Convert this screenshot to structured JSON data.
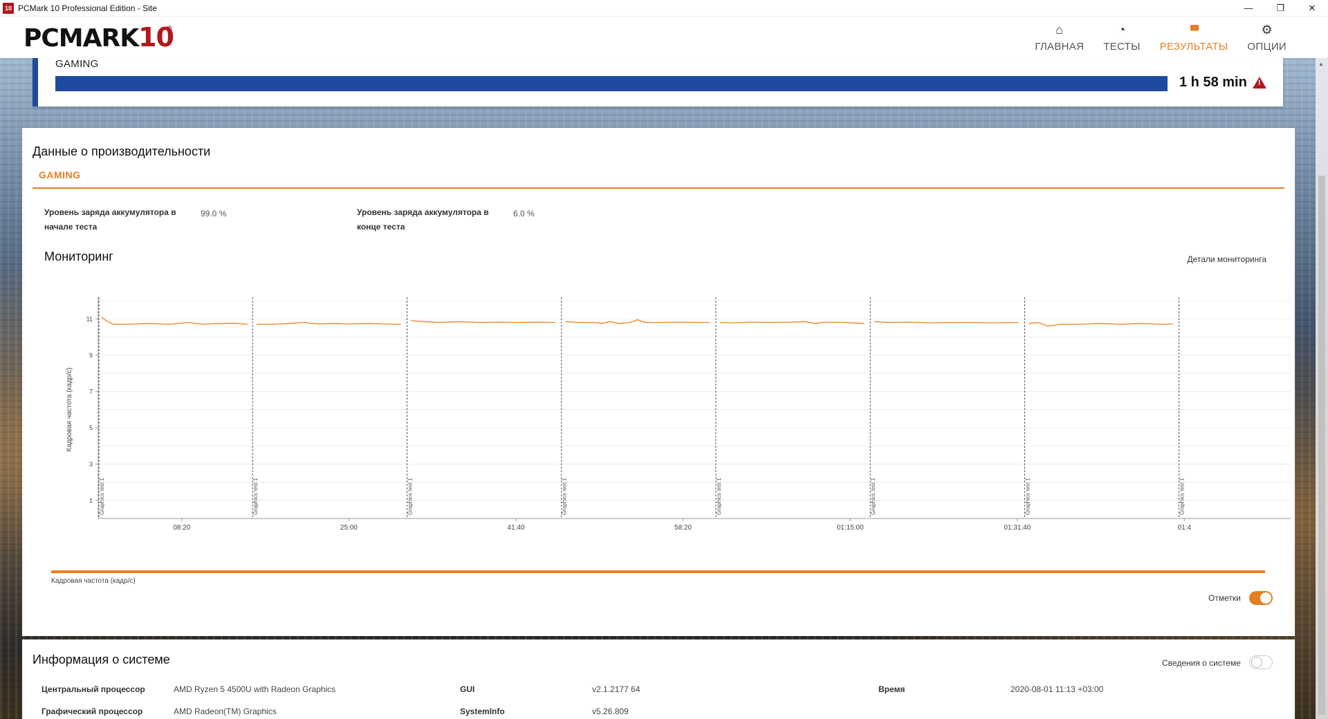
{
  "window": {
    "title": "PCMark 10 Professional Edition - Site",
    "app_icon_text": "10",
    "controls": [
      "—",
      "❐",
      "✕"
    ]
  },
  "header": {
    "logo_main": "PCMARK",
    "logo_num": "10",
    "logo_reg": "®",
    "nav": [
      {
        "label": "ГЛАВНАЯ",
        "icon": "home-icon",
        "glyph": "⌂",
        "active": false
      },
      {
        "label": "ТЕСТЫ",
        "icon": "gauge-icon",
        "glyph": "◔",
        "active": false
      },
      {
        "label": "РЕЗУЛЬТАТЫ",
        "icon": "bar-chart-icon",
        "glyph": "▮▮▮",
        "active": true
      },
      {
        "label": "ОПЦИИ",
        "icon": "gear-icon",
        "glyph": "⚙",
        "active": false
      }
    ]
  },
  "gaming_card": {
    "label": "GAMING",
    "score": "1 h 58 min"
  },
  "performance": {
    "title": "Данные о производительности",
    "tab": "GAMING",
    "battery_start_label": "Уровень заряда аккумулятора в начале теста",
    "battery_start_value": "99.0 %",
    "battery_end_label": "Уровень заряда аккумулятора в конце теста",
    "battery_end_value": "6.0 %",
    "monitoring_title": "Мониторинг",
    "monitoring_link": "Детали мониторинга",
    "legend_label": "Кадровая частота (кадр/с)",
    "marks_label": "Отметки",
    "marks_on": true
  },
  "chart_data": {
    "type": "line",
    "ylabel": "Кадровая частота (кадр/с)",
    "ylim": [
      0,
      12
    ],
    "yticks": [
      1,
      3,
      5,
      7,
      9,
      11
    ],
    "x_tick_labels": [
      "08:20",
      "25:00",
      "41:40",
      "58:20",
      "01:15:00",
      "01:31:40",
      "01:4"
    ],
    "x_range_minutes": [
      0,
      119
    ],
    "x_tick_minutes": [
      8.33,
      25,
      41.67,
      58.33,
      75,
      91.67,
      108.33
    ],
    "segment_markers_minutes": [
      0,
      15.4,
      30.8,
      46.2,
      61.6,
      77.0,
      92.4,
      107.8
    ],
    "segment_marker_label": "Graphics test 1",
    "series": [
      {
        "name": "Кадровая частота (кадр/с)",
        "color": "#f07f1e",
        "segments": [
          [
            [
              0.3,
              11.1
            ],
            [
              0.8,
              10.9
            ],
            [
              1.5,
              10.7
            ],
            [
              3,
              10.7
            ],
            [
              5,
              10.75
            ],
            [
              7,
              10.7
            ],
            [
              9,
              10.8
            ],
            [
              10.5,
              10.7
            ],
            [
              12,
              10.75
            ],
            [
              13.8,
              10.75
            ],
            [
              14.9,
              10.7
            ]
          ],
          [
            [
              15.8,
              10.7
            ],
            [
              17.5,
              10.7
            ],
            [
              19,
              10.75
            ],
            [
              20.5,
              10.8
            ],
            [
              22,
              10.72
            ],
            [
              23.5,
              10.75
            ],
            [
              25,
              10.72
            ],
            [
              27,
              10.75
            ],
            [
              28.5,
              10.72
            ],
            [
              30.2,
              10.7
            ]
          ],
          [
            [
              31.2,
              10.9
            ],
            [
              32.5,
              10.85
            ],
            [
              34,
              10.8
            ],
            [
              36,
              10.85
            ],
            [
              38,
              10.8
            ],
            [
              40,
              10.82
            ],
            [
              42,
              10.8
            ],
            [
              44,
              10.82
            ],
            [
              45.6,
              10.8
            ]
          ],
          [
            [
              46.6,
              10.85
            ],
            [
              48,
              10.8
            ],
            [
              49.5,
              10.8
            ],
            [
              50.3,
              10.75
            ],
            [
              51,
              10.85
            ],
            [
              52,
              10.75
            ],
            [
              53,
              10.8
            ],
            [
              53.8,
              10.95
            ],
            [
              54.6,
              10.8
            ],
            [
              56,
              10.8
            ],
            [
              58,
              10.82
            ],
            [
              60,
              10.8
            ],
            [
              61.0,
              10.8
            ]
          ],
          [
            [
              62.0,
              10.8
            ],
            [
              63.5,
              10.78
            ],
            [
              65,
              10.82
            ],
            [
              67,
              10.8
            ],
            [
              69,
              10.82
            ],
            [
              70.5,
              10.85
            ],
            [
              71.5,
              10.75
            ],
            [
              72.5,
              10.82
            ],
            [
              74.5,
              10.8
            ],
            [
              76.4,
              10.75
            ]
          ],
          [
            [
              77.4,
              10.85
            ],
            [
              79,
              10.8
            ],
            [
              81,
              10.82
            ],
            [
              83,
              10.78
            ],
            [
              85,
              10.8
            ],
            [
              87,
              10.8
            ],
            [
              89,
              10.78
            ],
            [
              91.8,
              10.8
            ]
          ],
          [
            [
              92.8,
              10.75
            ],
            [
              93.8,
              10.8
            ],
            [
              94.7,
              10.6
            ],
            [
              96,
              10.7
            ],
            [
              98,
              10.7
            ],
            [
              100,
              10.75
            ],
            [
              102,
              10.7
            ],
            [
              104,
              10.75
            ],
            [
              106,
              10.7
            ],
            [
              107.2,
              10.72
            ]
          ]
        ]
      }
    ]
  },
  "system": {
    "title": "Информация о системе",
    "toggle_label": "Сведения о системе",
    "toggle_on": false,
    "rows": [
      {
        "label": "Центральный процессор",
        "value": "AMD Ryzen 5 4500U with Radeon Graphics"
      },
      {
        "label": "Графический процессор",
        "value": "AMD Radeon(TM) Graphics"
      },
      {
        "label": "GUI",
        "value": "v2.1.2177 64"
      },
      {
        "label": "SystemInfo",
        "value": "v5.26.809"
      },
      {
        "label": "Время",
        "value": "2020-08-01 11:13 +03:00"
      }
    ]
  }
}
